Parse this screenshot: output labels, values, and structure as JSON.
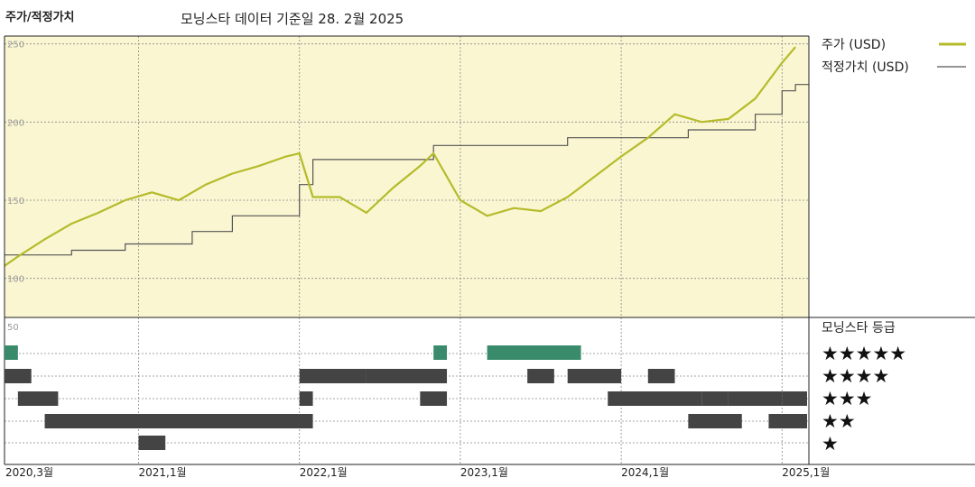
{
  "header": {
    "left_title": "주가/적정가치",
    "source_note": "모닝스타 데이터 기준일 28. 2월 2025"
  },
  "legend": {
    "price_label": "주가 (USD)",
    "fair_value_label": "적정가치 (USD)",
    "rating_title": "모닝스타 등급",
    "star_labels": [
      "★★★★★",
      "★★★★",
      "★★★",
      "★★",
      "★"
    ]
  },
  "colors": {
    "price": "#b5bb2a",
    "fair_value": "#555555",
    "plot_bg": "#faf6d2",
    "five_star": "#3a8a6c",
    "rating_bar": "#444444"
  },
  "chart_data": {
    "type": "line",
    "x_axis_labels": [
      "2020,3월",
      "2021,1월",
      "2022,1월",
      "2023,1월",
      "2024,1월",
      "2025,1월"
    ],
    "y_tick_labels": [
      "250",
      "200",
      "150",
      "100"
    ],
    "ylim": [
      75,
      255
    ],
    "price_series": {
      "name": "주가 (USD)",
      "points": [
        [
          "2020-03",
          108
        ],
        [
          "2020-04",
          114
        ],
        [
          "2020-06",
          125
        ],
        [
          "2020-08",
          135
        ],
        [
          "2020-10",
          142
        ],
        [
          "2020-12",
          150
        ],
        [
          "2021-02",
          155
        ],
        [
          "2021-04",
          150
        ],
        [
          "2021-06",
          160
        ],
        [
          "2021-08",
          167
        ],
        [
          "2021-10",
          172
        ],
        [
          "2021-12",
          178
        ],
        [
          "2022-01",
          180
        ],
        [
          "2022-02",
          152
        ],
        [
          "2022-04",
          152
        ],
        [
          "2022-06",
          142
        ],
        [
          "2022-08",
          158
        ],
        [
          "2022-10",
          172
        ],
        [
          "2022-11",
          180
        ],
        [
          "2023-01",
          150
        ],
        [
          "2023-03",
          140
        ],
        [
          "2023-05",
          145
        ],
        [
          "2023-07",
          143
        ],
        [
          "2023-09",
          152
        ],
        [
          "2023-11",
          165
        ],
        [
          "2024-01",
          178
        ],
        [
          "2024-03",
          190
        ],
        [
          "2024-05",
          205
        ],
        [
          "2024-07",
          200
        ],
        [
          "2024-09",
          202
        ],
        [
          "2024-11",
          215
        ],
        [
          "2025-01",
          238
        ],
        [
          "2025-02",
          248
        ]
      ]
    },
    "fair_value_series": {
      "name": "적정가치 (USD)",
      "steps": [
        [
          "2020-03",
          115
        ],
        [
          "2020-08",
          118
        ],
        [
          "2020-12",
          122
        ],
        [
          "2021-05",
          130
        ],
        [
          "2021-08",
          140
        ],
        [
          "2022-01",
          160
        ],
        [
          "2022-02",
          176
        ],
        [
          "2022-11",
          185
        ],
        [
          "2023-09",
          190
        ],
        [
          "2024-02",
          190
        ],
        [
          "2024-06",
          195
        ],
        [
          "2024-11",
          205
        ],
        [
          "2025-01",
          220
        ],
        [
          "2025-02",
          224
        ]
      ]
    },
    "rating_periods": [
      {
        "stars": 5,
        "from": "2020-03",
        "to": "2020-03"
      },
      {
        "stars": 5,
        "from": "2022-11",
        "to": "2022-11"
      },
      {
        "stars": 5,
        "from": "2023-03",
        "to": "2023-06"
      },
      {
        "stars": 5,
        "from": "2023-07",
        "to": "2023-09"
      },
      {
        "stars": 4,
        "from": "2020-03",
        "to": "2020-04"
      },
      {
        "stars": 4,
        "from": "2022-01",
        "to": "2022-05"
      },
      {
        "stars": 4,
        "from": "2022-06",
        "to": "2022-09"
      },
      {
        "stars": 4,
        "from": "2022-09",
        "to": "2022-11"
      },
      {
        "stars": 4,
        "from": "2023-06",
        "to": "2023-07"
      },
      {
        "stars": 4,
        "from": "2023-09",
        "to": "2023-12"
      },
      {
        "stars": 4,
        "from": "2024-03",
        "to": "2024-04"
      },
      {
        "stars": 3,
        "from": "2020-04",
        "to": "2020-06"
      },
      {
        "stars": 3,
        "from": "2022-01",
        "to": "2022-01"
      },
      {
        "stars": 3,
        "from": "2022-10",
        "to": "2022-11"
      },
      {
        "stars": 3,
        "from": "2023-12",
        "to": "2024-04"
      },
      {
        "stars": 3,
        "from": "2024-05",
        "to": "2024-06"
      },
      {
        "stars": 3,
        "from": "2024-07",
        "to": "2024-08"
      },
      {
        "stars": 3,
        "from": "2024-09",
        "to": "2024-12"
      },
      {
        "stars": 3,
        "from": "2025-01",
        "to": "2025-02"
      },
      {
        "stars": 3,
        "from": "2025-02",
        "to": "2025-02"
      },
      {
        "stars": 2,
        "from": "2020-06",
        "to": "2021-01"
      },
      {
        "stars": 2,
        "from": "2021-01",
        "to": "2022-01"
      },
      {
        "stars": 2,
        "from": "2024-06",
        "to": "2024-08"
      },
      {
        "stars": 2,
        "from": "2024-08",
        "to": "2024-09"
      },
      {
        "stars": 2,
        "from": "2024-12",
        "to": "2025-01"
      },
      {
        "stars": 2,
        "from": "2025-01",
        "to": "2025-02"
      },
      {
        "stars": 2,
        "from": "2025-02",
        "to": "2025-02"
      },
      {
        "stars": 1,
        "from": "2021-01",
        "to": "2021-02"
      }
    ]
  }
}
